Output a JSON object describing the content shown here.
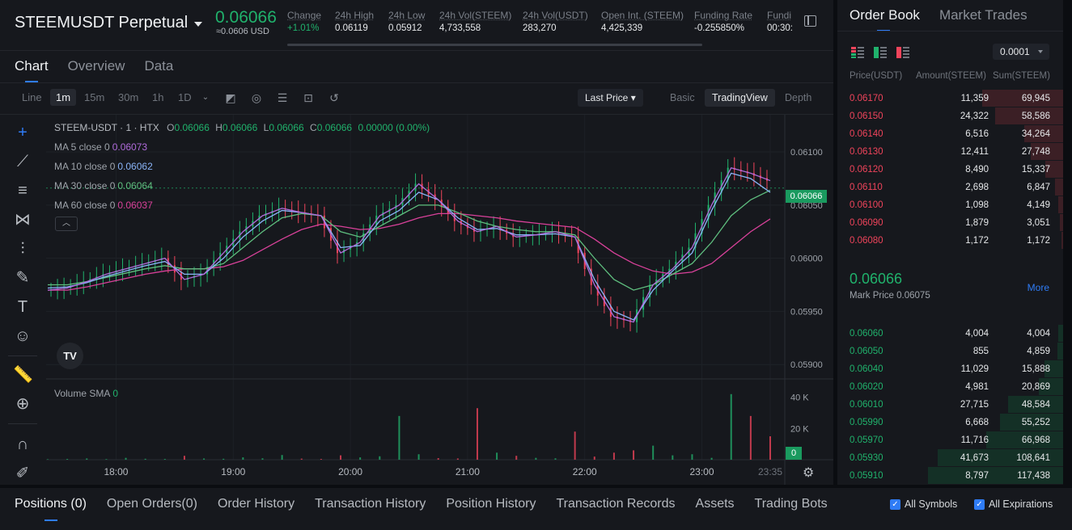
{
  "ticker": {
    "symbol": "STEEMUSDT Perpetual",
    "last_price": "0.06066",
    "last_price_usd": "≈0.0606 USD",
    "stats": [
      {
        "label": "Change",
        "value": "+1.01%",
        "positive": true
      },
      {
        "label": "24h High",
        "value": "0.06119"
      },
      {
        "label": "24h Low",
        "value": "0.05912"
      },
      {
        "label": "24h Vol(STEEM)",
        "value": "4,733,558"
      },
      {
        "label": "24h Vol(USDT)",
        "value": "283,270"
      },
      {
        "label": "Open Int. (STEEM)",
        "value": "4,425,339"
      },
      {
        "label": "Funding Rate",
        "value": "-0.255850%"
      },
      {
        "label": "Fundi",
        "value": "00:30:"
      }
    ]
  },
  "chart_tabs": [
    "Chart",
    "Overview",
    "Data"
  ],
  "toolbar": {
    "timeframes": [
      "Line",
      "1m",
      "15m",
      "30m",
      "1h",
      "1D"
    ],
    "active_timeframe": "1m",
    "price_type": "Last Price",
    "views": [
      "Basic",
      "TradingView",
      "Depth"
    ],
    "active_view": "TradingView"
  },
  "legend": {
    "title": "STEEM-USDT · 1 · HTX",
    "ohlc": {
      "o": "0.06066",
      "h": "0.06066",
      "l": "0.06066",
      "c": "0.06066",
      "chg": "0.00000 (0.00%)"
    },
    "ma": [
      {
        "label": "MA 5 close 0",
        "value": "0.06073",
        "color": "#b06bdb"
      },
      {
        "label": "MA 10 close 0",
        "value": "0.06062",
        "color": "#8ab4f8"
      },
      {
        "label": "MA 30 close 0",
        "value": "0.06064",
        "color": "#5fbf7f"
      },
      {
        "label": "MA 60 close 0",
        "value": "0.06037",
        "color": "#d9419a"
      }
    ],
    "volume_label": "Volume SMA",
    "volume_value": "0"
  },
  "chart_data": {
    "type": "line",
    "x": [
      "17:25",
      "17:35",
      "17:45",
      "17:55",
      "18:05",
      "18:15",
      "18:25",
      "18:35",
      "18:45",
      "18:55",
      "19:05",
      "19:15",
      "19:25",
      "19:35",
      "19:45",
      "19:55",
      "20:05",
      "20:15",
      "20:25",
      "20:35",
      "20:45",
      "20:55",
      "21:05",
      "21:15",
      "21:25",
      "21:35",
      "21:45",
      "21:55",
      "22:05",
      "22:15",
      "22:25",
      "22:35",
      "22:45",
      "22:55",
      "23:05",
      "23:15",
      "23:25",
      "23:35"
    ],
    "x_ticks": [
      "18:00",
      "19:00",
      "20:00",
      "21:00",
      "22:00",
      "23:00",
      "23:35"
    ],
    "y_ticks": [
      "0.06100",
      "0.06050",
      "0.06000",
      "0.05950",
      "0.05900"
    ],
    "ylim": [
      0.05888,
      0.06135
    ],
    "series": [
      {
        "name": "MA 5",
        "color": "#b06bdb",
        "values": [
          0.0597,
          0.05972,
          0.05978,
          0.05985,
          0.0599,
          0.05995,
          0.06,
          0.0598,
          0.05985,
          0.06005,
          0.06025,
          0.0604,
          0.06047,
          0.06043,
          0.0604,
          0.06005,
          0.06015,
          0.0604,
          0.0605,
          0.0607,
          0.06055,
          0.06035,
          0.06025,
          0.0603,
          0.0602,
          0.06022,
          0.06025,
          0.0602,
          0.05975,
          0.05945,
          0.0594,
          0.05975,
          0.0599,
          0.0601,
          0.0605,
          0.06085,
          0.0608,
          0.06073
        ]
      },
      {
        "name": "MA 10",
        "color": "#8ab4f8",
        "values": [
          0.05972,
          0.05973,
          0.05977,
          0.05983,
          0.05988,
          0.05993,
          0.05997,
          0.05985,
          0.05985,
          0.06,
          0.0602,
          0.06035,
          0.06045,
          0.06043,
          0.0604,
          0.0601,
          0.06012,
          0.06035,
          0.06045,
          0.06062,
          0.06055,
          0.06038,
          0.06027,
          0.06028,
          0.06022,
          0.06022,
          0.06023,
          0.0602,
          0.0598,
          0.0595,
          0.05942,
          0.0597,
          0.05988,
          0.06005,
          0.06045,
          0.0608,
          0.06075,
          0.06062
        ]
      },
      {
        "name": "MA 30",
        "color": "#5fbf7f",
        "values": [
          0.05975,
          0.05975,
          0.05978,
          0.05982,
          0.05986,
          0.0599,
          0.05993,
          0.0599,
          0.0599,
          0.05995,
          0.0601,
          0.06025,
          0.06038,
          0.06042,
          0.0604,
          0.06025,
          0.0602,
          0.0603,
          0.0604,
          0.0605,
          0.0605,
          0.06043,
          0.06035,
          0.0603,
          0.06027,
          0.06025,
          0.06025,
          0.06022,
          0.06,
          0.0598,
          0.0597,
          0.05975,
          0.05985,
          0.05995,
          0.06015,
          0.0604,
          0.06055,
          0.06064
        ]
      },
      {
        "name": "MA 60",
        "color": "#d9419a",
        "values": [
          0.0597,
          0.0597,
          0.05973,
          0.05977,
          0.05981,
          0.05985,
          0.05988,
          0.0599,
          0.0599,
          0.05992,
          0.05998,
          0.06008,
          0.06018,
          0.06027,
          0.06032,
          0.0603,
          0.06027,
          0.06028,
          0.06032,
          0.06038,
          0.06042,
          0.06042,
          0.0604,
          0.06038,
          0.06035,
          0.06033,
          0.06031,
          0.06029,
          0.06018,
          0.06005,
          0.05995,
          0.05988,
          0.05985,
          0.05987,
          0.05995,
          0.0601,
          0.06025,
          0.06037
        ]
      }
    ],
    "volume_ticks": [
      "40 K",
      "20 K"
    ],
    "volume_max": 45000,
    "volume": [
      300,
      500,
      800,
      400,
      1200,
      600,
      500,
      2500,
      800,
      600,
      1500,
      900,
      3000,
      700,
      500,
      2800,
      1500,
      2200,
      28000,
      3500,
      1000,
      800,
      33000,
      4500,
      2500,
      1200,
      900,
      18000,
      2000,
      4500,
      6000,
      9000,
      2800,
      3500,
      1200,
      42000,
      28000,
      15000
    ]
  },
  "orderbook": {
    "tabs": [
      "Order Book",
      "Market Trades"
    ],
    "precision": "0.0001",
    "headers": {
      "price": "Price(USDT)",
      "amount": "Amount(STEEM)",
      "sum": "Sum(STEEM)"
    },
    "asks": [
      {
        "price": "0.06170",
        "amount": "11,359",
        "sum": "69,945",
        "depth": 0.6
      },
      {
        "price": "0.06150",
        "amount": "24,322",
        "sum": "58,586",
        "depth": 0.5
      },
      {
        "price": "0.06140",
        "amount": "6,516",
        "sum": "34,264",
        "depth": 0.29
      },
      {
        "price": "0.06130",
        "amount": "12,411",
        "sum": "27,748",
        "depth": 0.24
      },
      {
        "price": "0.06120",
        "amount": "8,490",
        "sum": "15,337",
        "depth": 0.13
      },
      {
        "price": "0.06110",
        "amount": "2,698",
        "sum": "6,847",
        "depth": 0.06
      },
      {
        "price": "0.06100",
        "amount": "1,098",
        "sum": "4,149",
        "depth": 0.035
      },
      {
        "price": "0.06090",
        "amount": "1,879",
        "sum": "3,051",
        "depth": 0.026
      },
      {
        "price": "0.06080",
        "amount": "1,172",
        "sum": "1,172",
        "depth": 0.01
      }
    ],
    "mid_price": "0.06066",
    "mark_price": "Mark Price 0.06075",
    "more": "More",
    "bids": [
      {
        "price": "0.06060",
        "amount": "4,004",
        "sum": "4,004",
        "depth": 0.034
      },
      {
        "price": "0.06050",
        "amount": "855",
        "sum": "4,859",
        "depth": 0.041
      },
      {
        "price": "0.06040",
        "amount": "11,029",
        "sum": "15,888",
        "depth": 0.135
      },
      {
        "price": "0.06020",
        "amount": "4,981",
        "sum": "20,869",
        "depth": 0.178
      },
      {
        "price": "0.06010",
        "amount": "27,715",
        "sum": "48,584",
        "depth": 0.41
      },
      {
        "price": "0.05990",
        "amount": "6,668",
        "sum": "55,252",
        "depth": 0.47
      },
      {
        "price": "0.05970",
        "amount": "11,716",
        "sum": "66,968",
        "depth": 0.57
      },
      {
        "price": "0.05930",
        "amount": "41,673",
        "sum": "108,641",
        "depth": 0.93
      },
      {
        "price": "0.05910",
        "amount": "8,797",
        "sum": "117,438",
        "depth": 1.0
      }
    ]
  },
  "bottom_tabs": [
    "Positions (0)",
    "Open Orders(0)",
    "Order History",
    "Transaction History",
    "Position History",
    "Transaction Records",
    "Assets",
    "Trading Bots"
  ],
  "filters": {
    "all_symbols": "All Symbols",
    "all_expirations": "All Expirations"
  },
  "colors": {
    "up": "#20b26c",
    "down": "#f0445b",
    "accent": "#2f7cf6"
  }
}
